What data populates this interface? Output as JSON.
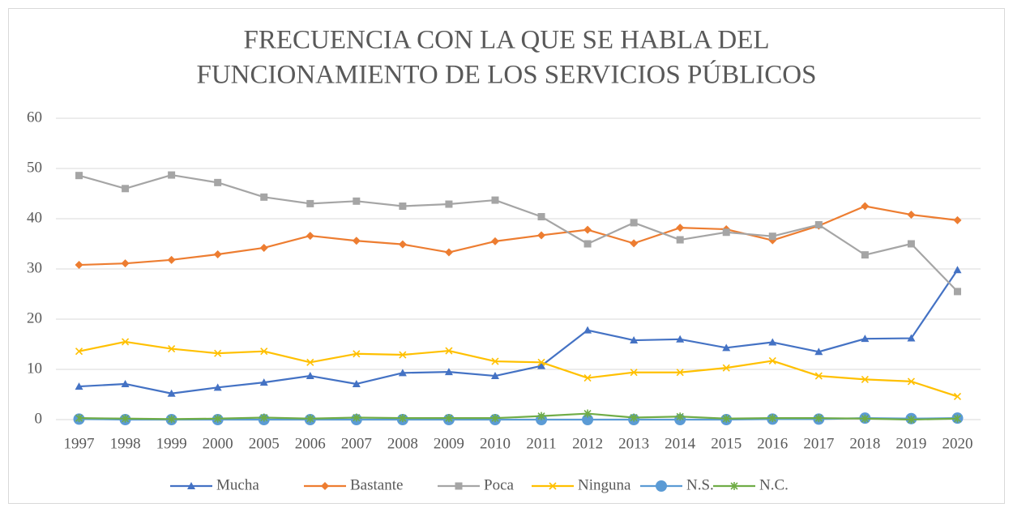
{
  "chart_data": {
    "type": "line",
    "title": [
      "FRECUENCIA CON LA QUE SE HABLA DEL",
      "FUNCIONAMIENTO DE LOS SERVICIOS PÚBLICOS"
    ],
    "categories": [
      "1997",
      "1998",
      "1999",
      "2000",
      "2005",
      "2006",
      "2007",
      "2008",
      "2009",
      "2010",
      "2011",
      "2012",
      "2013",
      "2014",
      "2015",
      "2016",
      "2017",
      "2018",
      "2019",
      "2020"
    ],
    "series": [
      {
        "name": "Mucha",
        "color": "#4472c4",
        "marker": "triangle",
        "values": [
          6.6,
          7.1,
          5.2,
          6.4,
          7.4,
          8.7,
          7.1,
          9.3,
          9.5,
          8.7,
          10.7,
          17.8,
          15.8,
          16.0,
          14.3,
          15.4,
          13.5,
          16.1,
          16.2,
          29.8
        ]
      },
      {
        "name": "Bastante",
        "color": "#ed7d31",
        "marker": "diamond",
        "values": [
          30.8,
          31.1,
          31.8,
          32.9,
          34.2,
          36.6,
          35.6,
          34.9,
          33.3,
          35.5,
          36.7,
          37.8,
          35.1,
          38.2,
          37.9,
          35.7,
          38.6,
          42.5,
          40.8,
          39.7
        ]
      },
      {
        "name": "Poca",
        "color": "#a5a5a5",
        "marker": "square",
        "values": [
          48.6,
          46.0,
          48.7,
          47.2,
          44.3,
          43.0,
          43.5,
          42.5,
          42.9,
          43.7,
          40.4,
          35.0,
          39.2,
          35.8,
          37.3,
          36.5,
          38.8,
          32.8,
          35.0,
          25.5
        ]
      },
      {
        "name": "Ninguna",
        "color": "#ffc000",
        "marker": "x",
        "values": [
          13.6,
          15.5,
          14.1,
          13.2,
          13.6,
          11.4,
          13.1,
          12.9,
          13.7,
          11.6,
          11.4,
          8.3,
          9.4,
          9.4,
          10.3,
          11.7,
          8.7,
          8.0,
          7.6,
          4.6
        ]
      },
      {
        "name": "N.S.",
        "color": "#5b9bd5",
        "marker": "circle",
        "values": [
          0.1,
          0,
          0,
          0,
          0,
          0,
          0,
          0,
          0,
          0,
          0,
          0,
          0,
          0,
          0,
          0.1,
          0.1,
          0.3,
          0.2,
          0.3
        ]
      },
      {
        "name": "N.C.",
        "color": "#70ad47",
        "marker": "star",
        "values": [
          0.3,
          0.2,
          0.1,
          0.2,
          0.4,
          0.2,
          0.4,
          0.3,
          0.3,
          0.3,
          0.7,
          1.2,
          0.4,
          0.6,
          0.2,
          0.3,
          0.3,
          0.2,
          0.0,
          0.2
        ]
      }
    ],
    "ylim": [
      0,
      60
    ],
    "yticks": [
      0,
      10,
      20,
      30,
      40,
      50,
      60
    ],
    "grid": true,
    "legend": "bottom"
  }
}
